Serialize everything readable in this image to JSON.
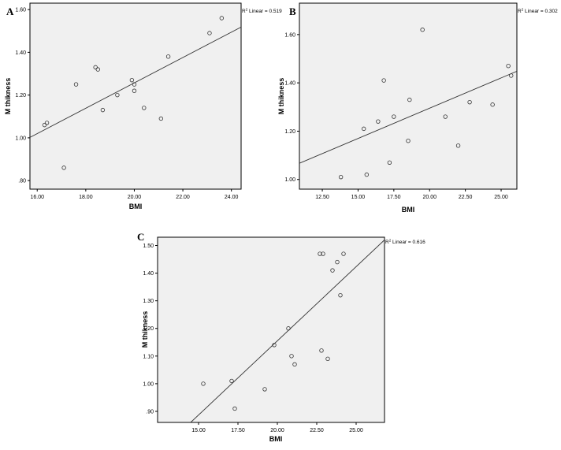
{
  "chart_data": [
    {
      "type": "scatter",
      "panel_label": "A",
      "xlabel": "BMI",
      "ylabel": "M thikness",
      "r2_prefix": "R",
      "r2_sup": "2",
      "r2_text": " Linear = 0.519",
      "xlim": [
        15.7,
        24.4
      ],
      "ylim": [
        0.76,
        1.63
      ],
      "xticks": [
        16,
        18,
        20,
        22,
        24
      ],
      "xtick_labels": [
        "16.00",
        "18.00",
        "20.00",
        "22.00",
        "24.00"
      ],
      "yticks": [
        0.8,
        1.0,
        1.2,
        1.4,
        1.6
      ],
      "ytick_labels": [
        ".80",
        "1.00",
        "1.20",
        "1.40",
        "1.60"
      ],
      "grid": false,
      "points": [
        {
          "x": 16.3,
          "y": 1.06
        },
        {
          "x": 16.4,
          "y": 1.07
        },
        {
          "x": 17.1,
          "y": 0.86
        },
        {
          "x": 17.6,
          "y": 1.25
        },
        {
          "x": 18.4,
          "y": 1.33
        },
        {
          "x": 18.5,
          "y": 1.32
        },
        {
          "x": 18.7,
          "y": 1.13
        },
        {
          "x": 19.3,
          "y": 1.2
        },
        {
          "x": 19.9,
          "y": 1.27
        },
        {
          "x": 20.0,
          "y": 1.25
        },
        {
          "x": 20.0,
          "y": 1.22
        },
        {
          "x": 20.4,
          "y": 1.14
        },
        {
          "x": 21.1,
          "y": 1.09
        },
        {
          "x": 21.4,
          "y": 1.38
        },
        {
          "x": 23.1,
          "y": 1.49
        },
        {
          "x": 23.6,
          "y": 1.56
        }
      ],
      "fit": {
        "x": [
          15.7,
          24.4
        ],
        "y": [
          1.002,
          1.518
        ]
      }
    },
    {
      "type": "scatter",
      "panel_label": "B",
      "xlabel": "BMI",
      "ylabel": "M thikness",
      "r2_prefix": "R",
      "r2_sup": "2",
      "r2_text": " Linear = 0.302",
      "xlim": [
        10.9,
        26.1
      ],
      "ylim": [
        0.96,
        1.73
      ],
      "xticks": [
        12.5,
        15,
        17.5,
        20,
        22.5,
        25
      ],
      "xtick_labels": [
        "12.50",
        "15.00",
        "17.50",
        "20.00",
        "22.50",
        "25.00"
      ],
      "yticks": [
        1.0,
        1.2,
        1.4,
        1.6
      ],
      "ytick_labels": [
        "1.00",
        "1.20",
        "1.40",
        "1.60"
      ],
      "grid": false,
      "points": [
        {
          "x": 13.8,
          "y": 1.01
        },
        {
          "x": 15.4,
          "y": 1.21
        },
        {
          "x": 15.6,
          "y": 1.02
        },
        {
          "x": 16.4,
          "y": 1.24
        },
        {
          "x": 16.8,
          "y": 1.41
        },
        {
          "x": 17.2,
          "y": 1.07
        },
        {
          "x": 17.5,
          "y": 1.26
        },
        {
          "x": 18.5,
          "y": 1.16
        },
        {
          "x": 18.6,
          "y": 1.33
        },
        {
          "x": 19.5,
          "y": 1.62
        },
        {
          "x": 21.1,
          "y": 1.26
        },
        {
          "x": 22.0,
          "y": 1.14
        },
        {
          "x": 22.8,
          "y": 1.32
        },
        {
          "x": 24.4,
          "y": 1.31
        },
        {
          "x": 25.5,
          "y": 1.47
        },
        {
          "x": 25.7,
          "y": 1.43
        }
      ],
      "fit": {
        "x": [
          10.9,
          26.1
        ],
        "y": [
          1.067,
          1.448
        ]
      }
    },
    {
      "type": "scatter",
      "panel_label": "C",
      "xlabel": "BMI",
      "ylabel": "M thikness",
      "r2_prefix": "R",
      "r2_sup": "2",
      "r2_text": " Linear = 0.616",
      "xlim": [
        12.4,
        26.8
      ],
      "ylim": [
        0.86,
        1.53
      ],
      "xticks": [
        15,
        17.5,
        20,
        22.5,
        25
      ],
      "xtick_labels": [
        "15.00",
        "17.50",
        "20.00",
        "22.50",
        "25.00"
      ],
      "yticks": [
        0.9,
        1.0,
        1.1,
        1.2,
        1.3,
        1.4,
        1.5
      ],
      "ytick_labels": [
        ".90",
        "1.00",
        "1.10",
        "1.20",
        "1.30",
        "1.40",
        "1.50"
      ],
      "grid": false,
      "points": [
        {
          "x": 15.3,
          "y": 1.0
        },
        {
          "x": 17.1,
          "y": 1.01
        },
        {
          "x": 17.3,
          "y": 0.91
        },
        {
          "x": 19.2,
          "y": 0.98
        },
        {
          "x": 19.8,
          "y": 1.14
        },
        {
          "x": 20.7,
          "y": 1.2
        },
        {
          "x": 20.9,
          "y": 1.1
        },
        {
          "x": 21.1,
          "y": 1.07
        },
        {
          "x": 22.7,
          "y": 1.47
        },
        {
          "x": 22.8,
          "y": 1.12
        },
        {
          "x": 22.9,
          "y": 1.47
        },
        {
          "x": 23.2,
          "y": 1.09
        },
        {
          "x": 23.5,
          "y": 1.41
        },
        {
          "x": 23.8,
          "y": 1.44
        },
        {
          "x": 24.0,
          "y": 1.32
        },
        {
          "x": 24.2,
          "y": 1.47
        }
      ],
      "fit": {
        "x": [
          14.5,
          26.8
        ],
        "y": [
          0.86,
          1.52
        ]
      }
    }
  ]
}
